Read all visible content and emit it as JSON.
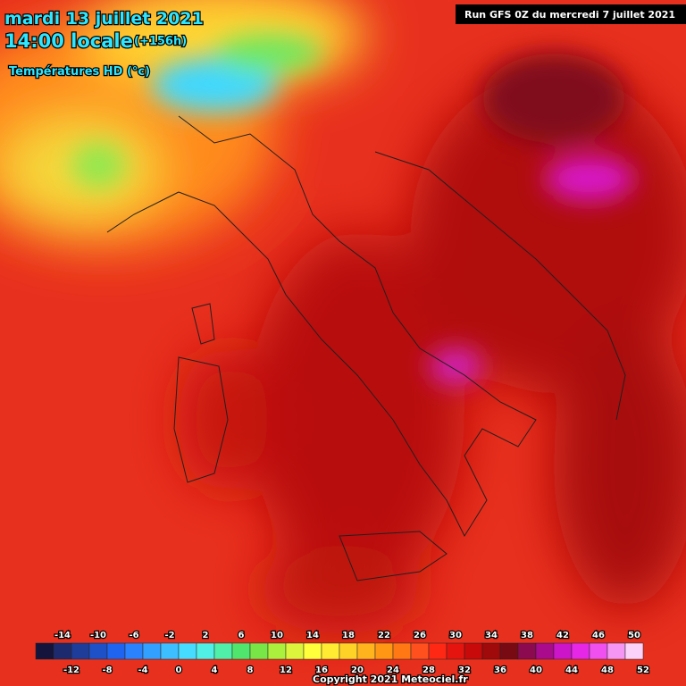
{
  "header": {
    "date": "mardi 13 juillet 2021",
    "time": "14:00 locale",
    "lead": "(+156h)",
    "field": "Températures HD (°c)",
    "run": "Run GFS 0Z du mercredi 7 juillet 2021"
  },
  "legend": {
    "min": -16,
    "step": 2,
    "colors": [
      "#14143c",
      "#1e2a6e",
      "#1e3c9a",
      "#1e50c8",
      "#1e64f0",
      "#2a82ff",
      "#32a0ff",
      "#3cbeff",
      "#46dcff",
      "#50f0e6",
      "#50f0aa",
      "#50e66e",
      "#78e646",
      "#aaf03c",
      "#dcf53c",
      "#ffff3c",
      "#ffeb32",
      "#ffd228",
      "#ffb41e",
      "#ff9614",
      "#ff7814",
      "#ff501e",
      "#ff2814",
      "#e6140f",
      "#c80a0a",
      "#a00a0a",
      "#780a14",
      "#8c0a50",
      "#aa0a8c",
      "#cc14c8",
      "#e628e6",
      "#f050f0",
      "#f596f5",
      "#fad2fa"
    ],
    "top_labels": [
      -14,
      -10,
      -6,
      -2,
      2,
      6,
      10,
      14,
      18,
      22,
      26,
      30,
      34,
      38,
      42,
      46,
      50
    ],
    "bottom_labels": [
      -12,
      -8,
      -4,
      0,
      4,
      8,
      12,
      16,
      20,
      24,
      28,
      32,
      36,
      40,
      44,
      48,
      52
    ]
  },
  "footer": {
    "copyright": "Copyright 2021 Meteociel.fr"
  }
}
